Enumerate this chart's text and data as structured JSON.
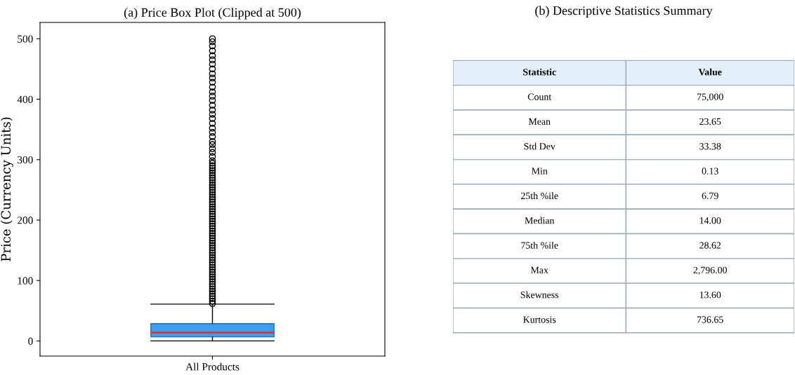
{
  "chart_data": [
    {
      "type": "box",
      "title": "(a) Price Box Plot (Clipped at 500)",
      "ylabel": "Price (Currency Units)",
      "categories": [
        "All Products"
      ],
      "ylim": [
        -25,
        527
      ],
      "yticks": [
        0,
        100,
        200,
        300,
        400,
        500
      ],
      "marker": "circle",
      "series": [
        {
          "color": "#3a9ff0",
          "boxes": [
            {
              "low": 0.13,
              "q1": 6.79,
              "median": 14.0,
              "q3": 28.62,
              "high": 61,
              "outliers": [
                62,
                66,
                70,
                74,
                78,
                82,
                86,
                90,
                94,
                98,
                102,
                106,
                110,
                114,
                118,
                122,
                126,
                130,
                134,
                138,
                142,
                146,
                150,
                154,
                158,
                162,
                166,
                170,
                174,
                178,
                182,
                186,
                190,
                194,
                198,
                202,
                206,
                210,
                214,
                218,
                222,
                226,
                230,
                234,
                238,
                242,
                246,
                250,
                254,
                258,
                262,
                266,
                270,
                274,
                278,
                282,
                286,
                290,
                294,
                298,
                305,
                312,
                318,
                325,
                330,
                338,
                345,
                352,
                360,
                368,
                375,
                382,
                390,
                398,
                405,
                412,
                420,
                428,
                435,
                442,
                450,
                458,
                465,
                472,
                480,
                488,
                495,
                500
              ]
            }
          ]
        }
      ]
    },
    {
      "type": "other",
      "title": "(b) Descriptive Statistics Summary",
      "categories": [
        "Statistic",
        "Value"
      ],
      "y_categories": [
        "Count",
        "Mean",
        "Std Dev",
        "Min",
        "25th %ile",
        "Median",
        "75th %ile",
        "Max",
        "Skewness",
        "Kurtosis"
      ],
      "cell_labels": [
        [
          "75,000"
        ],
        [
          "23.65"
        ],
        [
          "33.38"
        ],
        [
          "0.13"
        ],
        [
          "6.79"
        ],
        [
          "14.00"
        ],
        [
          "28.62"
        ],
        [
          "2,796.00"
        ],
        [
          "13.60"
        ],
        [
          "736.65"
        ]
      ],
      "color": "#e3f0fb"
    }
  ]
}
